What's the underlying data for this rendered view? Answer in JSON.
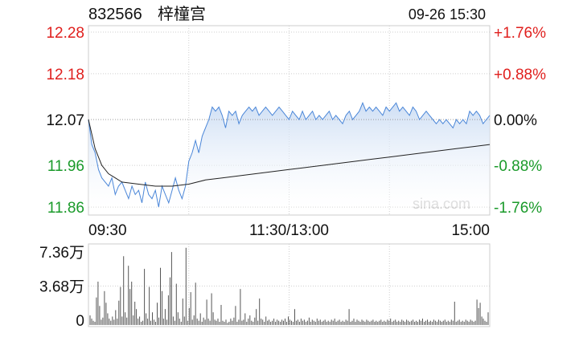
{
  "header": {
    "symbol": "832566",
    "name": "梓橦宫",
    "datetime": "09-26 15:30"
  },
  "watermark": "sina.com",
  "colors": {
    "up": "#e0201e",
    "down": "#1a9a2a",
    "neutral": "#111111",
    "price_line": "#4a86d8",
    "price_fill_top": "#c9dbf3",
    "price_fill_bottom": "#ffffff",
    "avg_line": "#222222",
    "grid": "#cfcfcf",
    "volume_bar": "#555555"
  },
  "chart_data": [
    {
      "type": "line",
      "title": "",
      "x_ticks": [
        "09:30",
        "11:30/13:00",
        "15:00"
      ],
      "left_axis_ticks": [
        {
          "label": "12.28",
          "value": 12.28,
          "tone": "up"
        },
        {
          "label": "12.18",
          "value": 12.18,
          "tone": "up"
        },
        {
          "label": "12.07",
          "value": 12.07,
          "tone": "neutral"
        },
        {
          "label": "11.96",
          "value": 11.96,
          "tone": "down"
        },
        {
          "label": "11.86",
          "value": 11.86,
          "tone": "down"
        }
      ],
      "right_axis_ticks": [
        {
          "label": "+1.76%",
          "tone": "up"
        },
        {
          "label": "+0.88%",
          "tone": "up"
        },
        {
          "label": "0.00%",
          "tone": "neutral"
        },
        {
          "label": "-0.88%",
          "tone": "down"
        },
        {
          "label": "-1.76%",
          "tone": "down"
        }
      ],
      "ylim": [
        11.86,
        12.28
      ],
      "prev_close": 12.07,
      "grid": "dashed",
      "series": [
        {
          "key": "price",
          "points": [
            [
              0,
              12.07
            ],
            [
              2,
              12.01
            ],
            [
              4,
              11.99
            ],
            [
              6,
              11.95
            ],
            [
              8,
              11.93
            ],
            [
              10,
              11.92
            ],
            [
              12,
              11.91
            ],
            [
              14,
              11.93
            ],
            [
              16,
              11.89
            ],
            [
              18,
              11.91
            ],
            [
              20,
              11.92
            ],
            [
              22,
              11.9
            ],
            [
              24,
              11.88
            ],
            [
              26,
              11.91
            ],
            [
              28,
              11.89
            ],
            [
              30,
              11.9
            ],
            [
              32,
              11.87
            ],
            [
              34,
              11.92
            ],
            [
              36,
              11.89
            ],
            [
              38,
              11.88
            ],
            [
              40,
              11.9
            ],
            [
              42,
              11.86
            ],
            [
              44,
              11.91
            ],
            [
              46,
              11.89
            ],
            [
              48,
              11.87
            ],
            [
              50,
              11.9
            ],
            [
              52,
              11.93
            ],
            [
              54,
              11.9
            ],
            [
              56,
              11.88
            ],
            [
              58,
              11.91
            ],
            [
              60,
              11.97
            ],
            [
              62,
              11.99
            ],
            [
              64,
              12.02
            ],
            [
              66,
              11.99
            ],
            [
              68,
              12.03
            ],
            [
              70,
              12.05
            ],
            [
              72,
              12.07
            ],
            [
              74,
              12.1
            ],
            [
              76,
              12.09
            ],
            [
              78,
              12.1
            ],
            [
              80,
              12.08
            ],
            [
              82,
              12.05
            ],
            [
              84,
              12.09
            ],
            [
              86,
              12.08
            ],
            [
              88,
              12.09
            ],
            [
              90,
              12.06
            ],
            [
              92,
              12.08
            ],
            [
              94,
              12.09
            ],
            [
              96,
              12.1
            ],
            [
              98,
              12.09
            ],
            [
              100,
              12.1
            ],
            [
              102,
              12.08
            ],
            [
              104,
              12.09
            ],
            [
              106,
              12.1
            ],
            [
              108,
              12.09
            ],
            [
              110,
              12.08
            ],
            [
              112,
              12.09
            ],
            [
              114,
              12.1
            ],
            [
              116,
              12.09
            ],
            [
              118,
              12.08
            ],
            [
              120,
              12.07
            ],
            [
              122,
              12.09
            ],
            [
              124,
              12.08
            ],
            [
              126,
              12.07
            ],
            [
              128,
              12.09
            ],
            [
              130,
              12.07
            ],
            [
              132,
              12.08
            ],
            [
              134,
              12.09
            ],
            [
              136,
              12.07
            ],
            [
              138,
              12.08
            ],
            [
              140,
              12.07
            ],
            [
              142,
              12.08
            ],
            [
              144,
              12.09
            ],
            [
              146,
              12.07
            ],
            [
              148,
              12.08
            ],
            [
              150,
              12.07
            ],
            [
              152,
              12.06
            ],
            [
              154,
              12.08
            ],
            [
              156,
              12.09
            ],
            [
              158,
              12.07
            ],
            [
              160,
              12.08
            ],
            [
              162,
              12.09
            ],
            [
              164,
              12.11
            ],
            [
              166,
              12.09
            ],
            [
              168,
              12.1
            ],
            [
              170,
              12.09
            ],
            [
              172,
              12.1
            ],
            [
              174,
              12.09
            ],
            [
              176,
              12.08
            ],
            [
              178,
              12.1
            ],
            [
              180,
              12.09
            ],
            [
              182,
              12.1
            ],
            [
              184,
              12.11
            ],
            [
              186,
              12.09
            ],
            [
              188,
              12.1
            ],
            [
              190,
              12.09
            ],
            [
              192,
              12.08
            ],
            [
              194,
              12.1
            ],
            [
              196,
              12.09
            ],
            [
              198,
              12.07
            ],
            [
              200,
              12.08
            ],
            [
              202,
              12.09
            ],
            [
              204,
              12.08
            ],
            [
              206,
              12.07
            ],
            [
              208,
              12.06
            ],
            [
              210,
              12.07
            ],
            [
              212,
              12.06
            ],
            [
              214,
              12.07
            ],
            [
              216,
              12.06
            ],
            [
              218,
              12.05
            ],
            [
              220,
              12.07
            ],
            [
              222,
              12.06
            ],
            [
              224,
              12.07
            ],
            [
              226,
              12.06
            ],
            [
              228,
              12.09
            ],
            [
              230,
              12.08
            ],
            [
              232,
              12.09
            ],
            [
              234,
              12.08
            ],
            [
              236,
              12.06
            ],
            [
              238,
              12.07
            ],
            [
              240,
              12.08
            ]
          ]
        },
        {
          "key": "avg",
          "points": [
            [
              0,
              12.07
            ],
            [
              4,
              12.0
            ],
            [
              8,
              11.96
            ],
            [
              12,
              11.94
            ],
            [
              16,
              11.93
            ],
            [
              20,
              11.92
            ],
            [
              30,
              11.915
            ],
            [
              40,
              11.91
            ],
            [
              50,
              11.91
            ],
            [
              60,
              11.915
            ],
            [
              70,
              11.925
            ],
            [
              80,
              11.93
            ],
            [
              90,
              11.935
            ],
            [
              100,
              11.94
            ],
            [
              110,
              11.945
            ],
            [
              120,
              11.95
            ],
            [
              130,
              11.955
            ],
            [
              140,
              11.96
            ],
            [
              150,
              11.965
            ],
            [
              160,
              11.97
            ],
            [
              170,
              11.975
            ],
            [
              180,
              11.98
            ],
            [
              190,
              11.985
            ],
            [
              200,
              11.99
            ],
            [
              210,
              11.995
            ],
            [
              220,
              12.0
            ],
            [
              230,
              12.005
            ],
            [
              240,
              12.01
            ]
          ]
        }
      ]
    },
    {
      "type": "bar",
      "title": "",
      "y_ticks": [
        "7.36万",
        "3.68万",
        "0"
      ],
      "ylim": [
        0,
        7.36
      ],
      "unit": "万",
      "values": [
        0.9,
        0.6,
        0.4,
        0.3,
        2.6,
        4.1,
        1.8,
        0.5,
        0.7,
        3.2,
        2.1,
        1.1,
        0.6,
        0.4,
        0.8,
        0.5,
        1.4,
        0.6,
        2.3,
        3.6,
        0.8,
        6.5,
        1.2,
        0.7,
        5.6,
        3.4,
        4.1,
        0.9,
        2.2,
        1.5,
        0.6,
        0.8,
        0.3,
        0.4,
        5.3,
        1.1,
        0.6,
        3.6,
        0.4,
        1.2,
        0.5,
        0.3,
        2.1,
        0.7,
        5.4,
        3.2,
        0.6,
        1.5,
        0.5,
        2.8,
        4.5,
        6.9,
        0.8,
        0.4,
        3.9,
        1.2,
        0.6,
        0.3,
        2.5,
        0.8,
        7.3,
        0.4,
        1.6,
        3.1,
        0.5,
        0.9,
        4.0,
        0.6,
        0.4,
        1.1,
        0.3,
        0.7,
        0.5,
        2.4,
        0.6,
        0.4,
        3.0,
        1.2,
        0.5,
        0.4,
        0.6,
        0.3,
        1.9,
        0.4,
        0.3,
        0.5,
        0.2,
        0.3,
        0.6,
        0.4,
        0.7,
        1.8,
        0.3,
        0.5,
        3.4,
        0.4,
        0.5,
        1.1,
        0.3,
        0.6,
        0.9,
        0.4,
        0.3,
        0.7,
        1.5,
        0.4,
        2.5,
        0.6,
        0.5,
        0.3,
        0.8,
        0.4,
        0.5,
        0.3,
        0.4,
        0.6,
        0.3,
        0.5,
        0.4,
        0.3,
        0.5,
        0.4,
        0.6,
        0.3,
        0.8,
        0.5,
        0.4,
        0.3,
        1.5,
        0.4,
        0.5,
        0.3,
        0.6,
        0.4,
        0.5,
        0.3,
        0.4,
        0.7,
        0.3,
        0.5,
        0.4,
        0.3,
        0.6,
        0.4,
        0.5,
        0.3,
        0.4,
        0.5,
        0.3,
        0.4,
        0.3,
        0.5,
        0.4,
        0.6,
        0.3,
        0.4,
        0.5,
        0.3,
        0.4,
        0.3,
        0.5,
        0.4,
        1.5,
        0.3,
        0.4,
        0.6,
        0.3,
        0.5,
        0.4,
        0.3,
        0.5,
        0.4,
        0.3,
        0.5,
        0.4,
        0.3,
        0.4,
        0.5,
        0.3,
        0.4,
        0.3,
        0.4,
        0.5,
        0.3,
        0.4,
        0.3,
        0.5,
        0.4,
        0.6,
        0.3,
        0.4,
        0.5,
        0.3,
        0.4,
        0.3,
        0.5,
        0.4,
        0.3,
        0.5,
        0.4,
        0.3,
        0.4,
        0.5,
        0.3,
        0.4,
        0.3,
        0.5,
        0.4,
        0.6,
        0.3,
        0.4,
        0.5,
        0.3,
        0.4,
        0.3,
        0.5,
        0.4,
        0.3,
        0.5,
        0.4,
        0.3,
        0.4,
        0.5,
        0.3,
        0.4,
        0.3,
        0.5,
        0.4,
        2.2,
        0.3,
        0.4,
        0.5,
        0.3,
        0.4,
        0.3,
        0.5,
        0.4,
        0.3,
        0.5,
        0.4,
        0.3,
        0.4,
        2.4,
        1.6,
        2.1,
        0.8,
        0.6,
        0.4,
        0.3,
        1.2
      ]
    }
  ]
}
